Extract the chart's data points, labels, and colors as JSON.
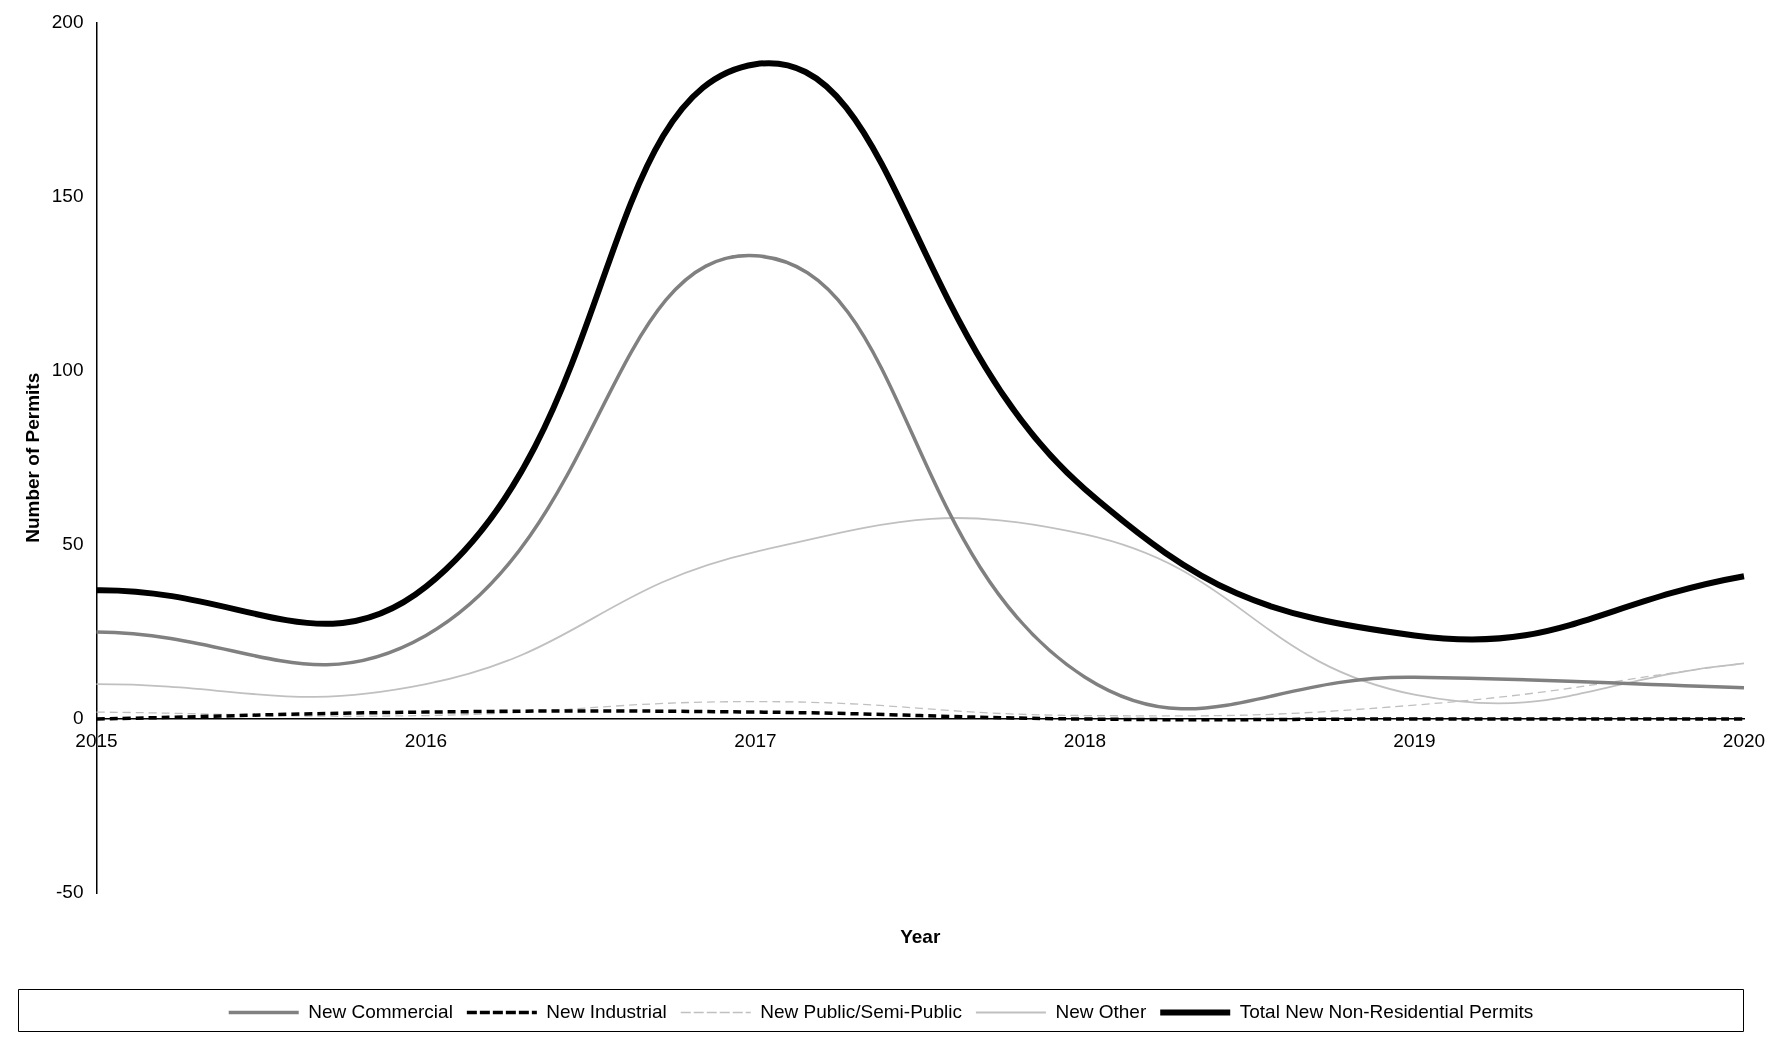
{
  "chart_data": {
    "type": "line",
    "xlabel": "Year",
    "ylabel": "Number of Permits",
    "categories": [
      "2015",
      "2016",
      "2017",
      "2018",
      "2019",
      "2020"
    ],
    "series": [
      {
        "name": "New Commercial",
        "color": "#808080",
        "line_style": "solid",
        "values": [
          25,
          24,
          133,
          12,
          12,
          9
        ]
      },
      {
        "name": "New Industrial",
        "color": "#000000",
        "line_style": "dashed",
        "values": [
          0,
          2,
          2,
          0,
          0,
          0
        ]
      },
      {
        "name": "New Public/Semi-Public",
        "color": "#c0c0c0",
        "line_style": "dashed",
        "values": [
          2,
          1,
          5,
          1,
          4,
          16
        ]
      },
      {
        "name": "New Other",
        "color": "#c0c0c0",
        "line_style": "solid",
        "values": [
          10,
          10,
          48,
          53,
          7,
          16
        ]
      },
      {
        "name": "Total New Non-Residential Permits",
        "color": "#000000",
        "line_style": "solid",
        "values": [
          37,
          38,
          188,
          66,
          24,
          41
        ]
      }
    ],
    "ylim": [
      -50,
      200
    ],
    "yticks": [
      -50,
      0,
      50,
      100,
      150,
      200
    ],
    "grid": false,
    "legend": "bottom",
    "marker": "none"
  }
}
